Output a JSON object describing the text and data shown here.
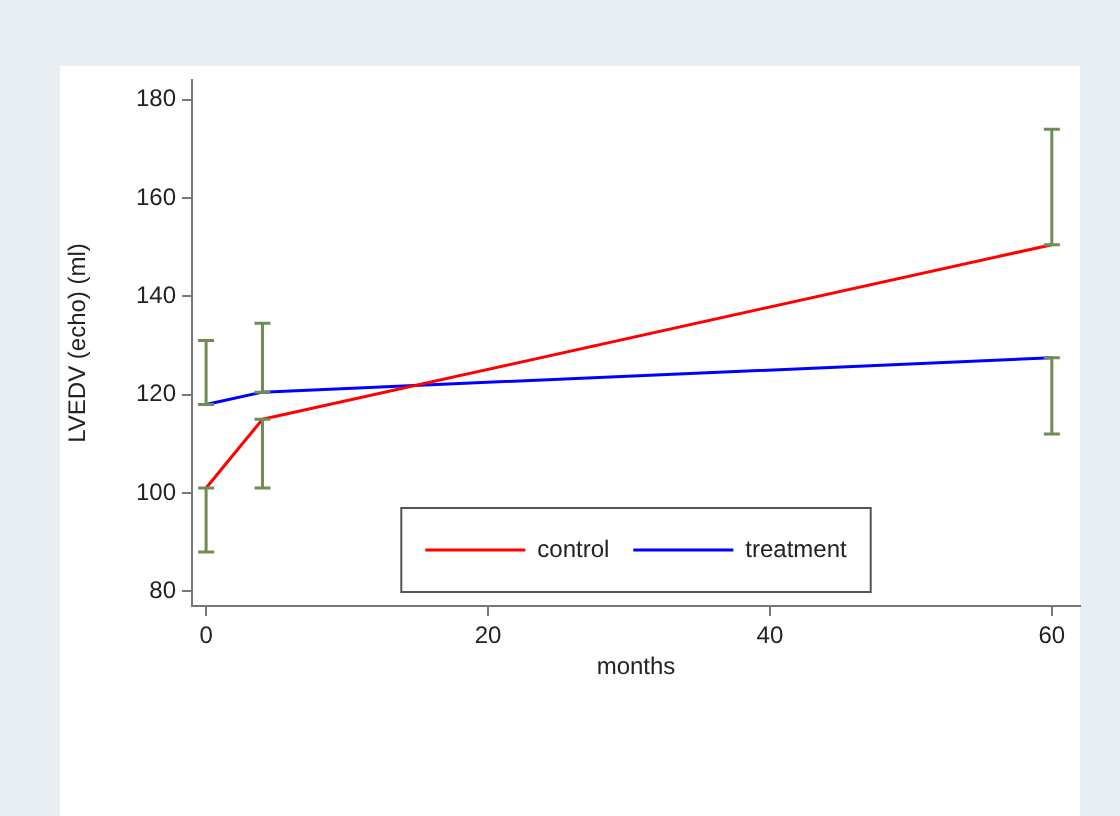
{
  "chart_data": {
    "type": "line",
    "xlabel": "months",
    "ylabel": "LVEDV (echo) (ml)",
    "x": [
      0,
      4,
      60
    ],
    "series": [
      {
        "name": "control",
        "color": "#ff0000",
        "values": [
          101,
          115,
          150.5
        ],
        "errors": [
          [
            88,
            101
          ],
          [
            101,
            115
          ],
          [
            150.5,
            174
          ]
        ]
      },
      {
        "name": "treatment",
        "color": "#0000ff",
        "values": [
          118,
          120.5,
          127.5
        ],
        "errors": [
          [
            118,
            131
          ],
          [
            120.5,
            134.5
          ],
          [
            112,
            127.5
          ]
        ]
      }
    ],
    "xlim": [
      -1,
      62
    ],
    "xticks": [
      0,
      20,
      40,
      60
    ],
    "ylim": [
      77,
      184
    ],
    "yticks": [
      80,
      100,
      120,
      140,
      160,
      180
    ],
    "grid": false,
    "legend": "bottom",
    "marker": "none",
    "line_style": "solid"
  }
}
